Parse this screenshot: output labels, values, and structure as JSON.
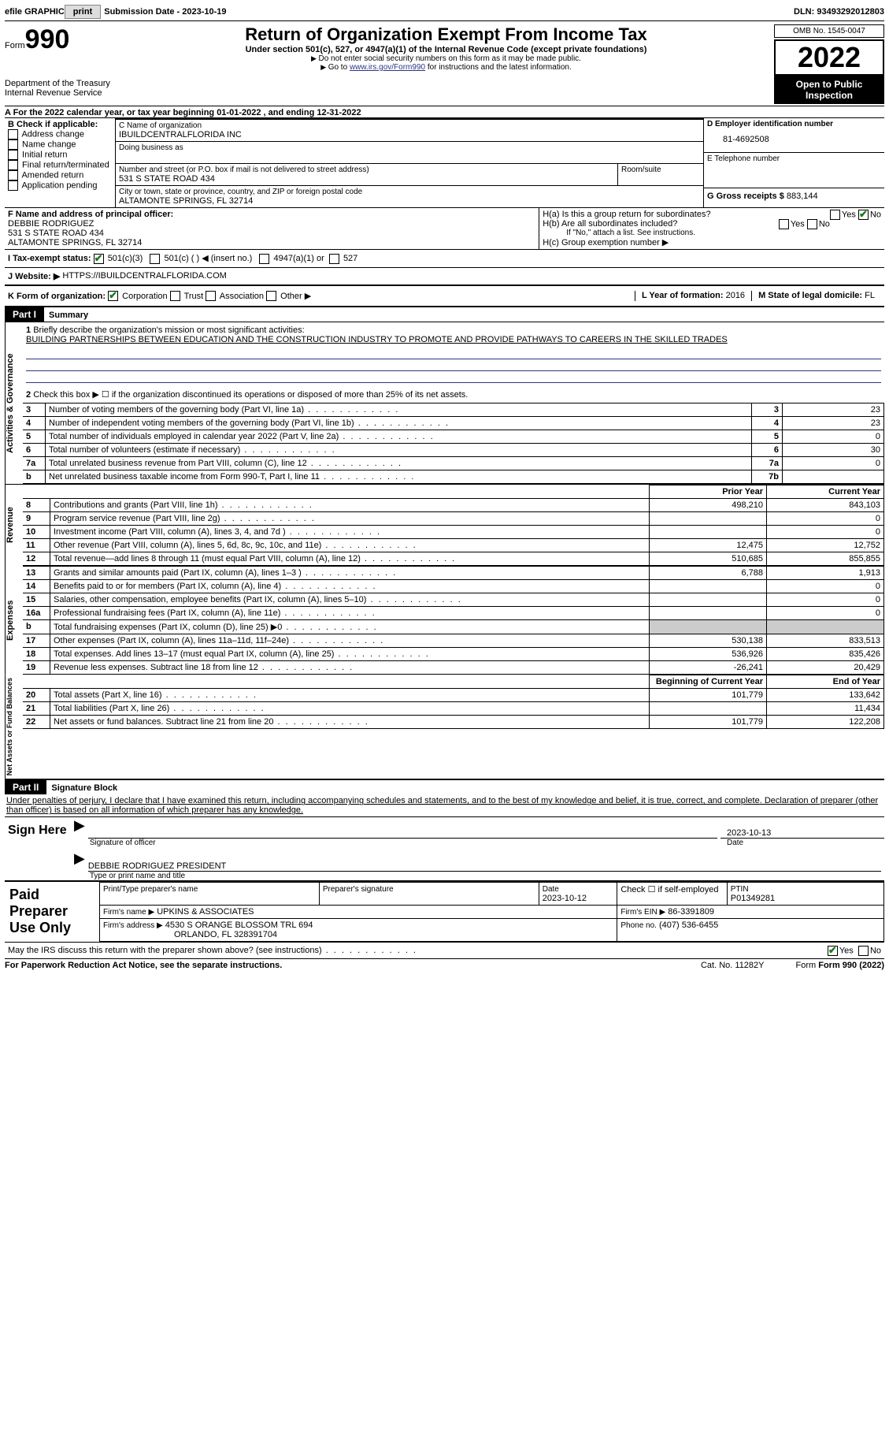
{
  "topbar": {
    "efile_label": "efile GRAPHIC",
    "print_btn": "print",
    "submission_label": "Submission Date - 2023-10-19",
    "dln_label": "DLN: 93493292012803"
  },
  "header": {
    "form_label": "Form",
    "form_number": "990",
    "dept": "Department of the Treasury",
    "irs": "Internal Revenue Service",
    "title": "Return of Organization Exempt From Income Tax",
    "subtitle": "Under section 501(c), 527, or 4947(a)(1) of the Internal Revenue Code (except private foundations)",
    "note1": "Do not enter social security numbers on this form as it may be made public.",
    "note2_pre": "Go to ",
    "note2_link": "www.irs.gov/Form990",
    "note2_post": " for instructions and the latest information.",
    "omb": "OMB No. 1545-0047",
    "year": "2022",
    "open": "Open to Public Inspection"
  },
  "lineA": {
    "text": "A For the 2022 calendar year, or tax year beginning 01-01-2022    , and ending 12-31-2022"
  },
  "boxB": {
    "label": "B Check if applicable:",
    "items": [
      "Address change",
      "Name change",
      "Initial return",
      "Final return/terminated",
      "Amended return",
      "Application pending"
    ]
  },
  "boxC": {
    "name_label": "C Name of organization",
    "name": "IBUILDCENTRALFLORIDA INC",
    "dba_label": "Doing business as",
    "addr_label": "Number and street (or P.O. box if mail is not delivered to street address)",
    "room_label": "Room/suite",
    "addr": "531 S STATE ROAD 434",
    "city_label": "City or town, state or province, country, and ZIP or foreign postal code",
    "city": "ALTAMONTE SPRINGS, FL  32714"
  },
  "boxD": {
    "label": "D Employer identification number",
    "value": "81-4692508"
  },
  "boxE": {
    "label": "E Telephone number",
    "value": ""
  },
  "boxG": {
    "label": "G Gross receipts $",
    "value": "883,144"
  },
  "boxF": {
    "label": "F  Name and address of principal officer:",
    "name": "DEBBIE RODRIGUEZ",
    "addr1": "531 S STATE ROAD 434",
    "addr2": "ALTAMONTE SPRINGS, FL  32714"
  },
  "boxH": {
    "ha": "H(a)  Is this a group return for subordinates?",
    "hb": "H(b)  Are all subordinates included?",
    "hb_note": "If \"No,\" attach a list. See instructions.",
    "hc": "H(c)  Group exemption number ▶",
    "yes": "Yes",
    "no": "No"
  },
  "boxI": {
    "label": "I    Tax-exempt status:",
    "opt1": "501(c)(3)",
    "opt2": "501(c) (  ) ◀ (insert no.)",
    "opt3": "4947(a)(1) or",
    "opt4": "527"
  },
  "boxJ": {
    "label": "J   Website: ▶",
    "value": "HTTPS://IBUILDCENTRALFLORIDA.COM"
  },
  "boxK": {
    "label": "K Form of organization:",
    "opts": [
      "Corporation",
      "Trust",
      "Association",
      "Other ▶"
    ]
  },
  "boxL": {
    "label": "L Year of formation:",
    "value": "2016"
  },
  "boxM": {
    "label": "M State of legal domicile:",
    "value": "FL"
  },
  "part1": {
    "bar": "Part I",
    "title": "Summary"
  },
  "summary": {
    "l1_label": "Briefly describe the organization's mission or most significant activities:",
    "l1_text": "BUILDING PARTNERSHIPS BETWEEN EDUCATION AND THE CONSTRUCTION INDUSTRY TO PROMOTE AND PROVIDE PATHWAYS TO CAREERS IN THE SKILLED TRADES",
    "l2": "Check this box ▶ ☐ if the organization discontinued its operations or disposed of more than 25% of its net assets.",
    "rows_gov": [
      {
        "n": "3",
        "t": "Number of voting members of the governing body (Part VI, line 1a)",
        "box": "3",
        "v": "23"
      },
      {
        "n": "4",
        "t": "Number of independent voting members of the governing body (Part VI, line 1b)",
        "box": "4",
        "v": "23"
      },
      {
        "n": "5",
        "t": "Total number of individuals employed in calendar year 2022 (Part V, line 2a)",
        "box": "5",
        "v": "0"
      },
      {
        "n": "6",
        "t": "Total number of volunteers (estimate if necessary)",
        "box": "6",
        "v": "30"
      },
      {
        "n": "7a",
        "t": "Total unrelated business revenue from Part VIII, column (C), line 12",
        "box": "7a",
        "v": "0"
      },
      {
        "n": "b",
        "t": "Net unrelated business taxable income from Form 990-T, Part I, line 11",
        "box": "7b",
        "v": ""
      }
    ],
    "col_prior": "Prior Year",
    "col_current": "Current Year",
    "rows_rev": [
      {
        "n": "8",
        "t": "Contributions and grants (Part VIII, line 1h)",
        "p": "498,210",
        "c": "843,103"
      },
      {
        "n": "9",
        "t": "Program service revenue (Part VIII, line 2g)",
        "p": "",
        "c": "0"
      },
      {
        "n": "10",
        "t": "Investment income (Part VIII, column (A), lines 3, 4, and 7d )",
        "p": "",
        "c": "0"
      },
      {
        "n": "11",
        "t": "Other revenue (Part VIII, column (A), lines 5, 6d, 8c, 9c, 10c, and 11e)",
        "p": "12,475",
        "c": "12,752"
      },
      {
        "n": "12",
        "t": "Total revenue—add lines 8 through 11 (must equal Part VIII, column (A), line 12)",
        "p": "510,685",
        "c": "855,855"
      }
    ],
    "rows_exp": [
      {
        "n": "13",
        "t": "Grants and similar amounts paid (Part IX, column (A), lines 1–3 )",
        "p": "6,788",
        "c": "1,913"
      },
      {
        "n": "14",
        "t": "Benefits paid to or for members (Part IX, column (A), line 4)",
        "p": "",
        "c": "0"
      },
      {
        "n": "15",
        "t": "Salaries, other compensation, employee benefits (Part IX, column (A), lines 5–10)",
        "p": "",
        "c": "0"
      },
      {
        "n": "16a",
        "t": "Professional fundraising fees (Part IX, column (A), line 11e)",
        "p": "",
        "c": "0"
      },
      {
        "n": "b",
        "t": "Total fundraising expenses (Part IX, column (D), line 25) ▶0",
        "p": "shade",
        "c": "shade"
      },
      {
        "n": "17",
        "t": "Other expenses (Part IX, column (A), lines 11a–11d, 11f–24e)",
        "p": "530,138",
        "c": "833,513"
      },
      {
        "n": "18",
        "t": "Total expenses. Add lines 13–17 (must equal Part IX, column (A), line 25)",
        "p": "536,926",
        "c": "835,426"
      },
      {
        "n": "19",
        "t": "Revenue less expenses. Subtract line 18 from line 12",
        "p": "-26,241",
        "c": "20,429"
      }
    ],
    "col_begin": "Beginning of Current Year",
    "col_end": "End of Year",
    "rows_net": [
      {
        "n": "20",
        "t": "Total assets (Part X, line 16)",
        "p": "101,779",
        "c": "133,642"
      },
      {
        "n": "21",
        "t": "Total liabilities (Part X, line 26)",
        "p": "",
        "c": "11,434"
      },
      {
        "n": "22",
        "t": "Net assets or fund balances. Subtract line 21 from line 20",
        "p": "101,779",
        "c": "122,208"
      }
    ],
    "vlabels": {
      "gov": "Activities & Governance",
      "rev": "Revenue",
      "exp": "Expenses",
      "net": "Net Assets or Fund Balances"
    }
  },
  "part2": {
    "bar": "Part II",
    "title": "Signature Block",
    "decl": "Under penalties of perjury, I declare that I have examined this return, including accompanying schedules and statements, and to the best of my knowledge and belief, it is true, correct, and complete. Declaration of preparer (other than officer) is based on all information of which preparer has any knowledge."
  },
  "sign": {
    "here": "Sign Here",
    "sig_label": "Signature of officer",
    "date_label": "Date",
    "date": "2023-10-13",
    "name": "DEBBIE RODRIGUEZ  PRESIDENT",
    "name_label": "Type or print name and title"
  },
  "prep": {
    "title": "Paid Preparer Use Only",
    "h1": "Print/Type preparer's name",
    "h2": "Preparer's signature",
    "h3": "Date",
    "h3v": "2023-10-12",
    "h4": "Check ☐ if self-employed",
    "h5": "PTIN",
    "h5v": "P01349281",
    "firm_label": "Firm's name   ▶",
    "firm": "UPKINS & ASSOCIATES",
    "ein_label": "Firm's EIN ▶",
    "ein": "86-3391809",
    "addr_label": "Firm's address ▶",
    "addr1": "4530 S ORANGE BLOSSOM TRL 694",
    "addr2": "ORLANDO, FL  328391704",
    "phone_label": "Phone no.",
    "phone": "(407) 536-6455"
  },
  "footer": {
    "q": "May the IRS discuss this return with the preparer shown above? (see instructions)",
    "yes": "Yes",
    "no": "No",
    "pra": "For Paperwork Reduction Act Notice, see the separate instructions.",
    "cat": "Cat. No. 11282Y",
    "form": "Form 990 (2022)"
  }
}
